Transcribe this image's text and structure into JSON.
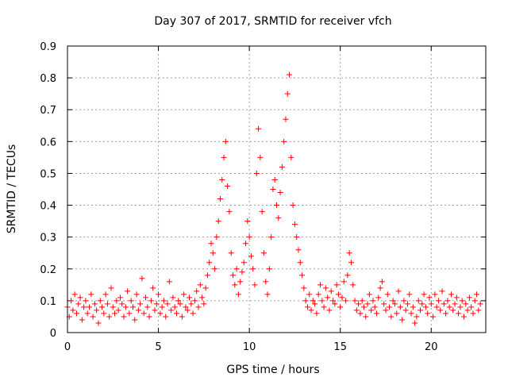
{
  "chart_data": {
    "type": "scatter",
    "title": "Day 307 of 2017, SRMTID for receiver vfch",
    "xlabel": "GPS time / hours",
    "ylabel": "SRMTID / TECUs",
    "xlim": [
      0,
      23
    ],
    "ylim": [
      0,
      0.9
    ],
    "xticks": [
      0,
      5,
      10,
      15,
      20
    ],
    "yticks": [
      0,
      0.1,
      0.2,
      0.3,
      0.4,
      0.5,
      0.6,
      0.7,
      0.8,
      0.9
    ],
    "x_tick_labels": [
      "0",
      "5",
      "10",
      "15",
      "20"
    ],
    "y_tick_labels": [
      "0",
      "0.1",
      "0.2",
      "0.3",
      "0.4",
      "0.5",
      "0.6",
      "0.7",
      "0.8",
      "0.9"
    ],
    "grid": true,
    "marker": "+",
    "color": "#ff0000",
    "series": [
      {
        "name": "SRMTID",
        "points": [
          [
            0.0,
            0.08
          ],
          [
            0.1,
            0.05
          ],
          [
            0.2,
            0.1
          ],
          [
            0.3,
            0.07
          ],
          [
            0.4,
            0.12
          ],
          [
            0.5,
            0.06
          ],
          [
            0.6,
            0.09
          ],
          [
            0.7,
            0.11
          ],
          [
            0.8,
            0.04
          ],
          [
            0.9,
            0.08
          ],
          [
            1.0,
            0.1
          ],
          [
            1.1,
            0.06
          ],
          [
            1.2,
            0.08
          ],
          [
            1.3,
            0.12
          ],
          [
            1.4,
            0.05
          ],
          [
            1.5,
            0.09
          ],
          [
            1.6,
            0.07
          ],
          [
            1.7,
            0.03
          ],
          [
            1.8,
            0.1
          ],
          [
            1.9,
            0.08
          ],
          [
            2.0,
            0.06
          ],
          [
            2.1,
            0.12
          ],
          [
            2.2,
            0.09
          ],
          [
            2.3,
            0.05
          ],
          [
            2.4,
            0.14
          ],
          [
            2.5,
            0.08
          ],
          [
            2.6,
            0.06
          ],
          [
            2.7,
            0.1
          ],
          [
            2.8,
            0.07
          ],
          [
            2.9,
            0.11
          ],
          [
            3.0,
            0.09
          ],
          [
            3.1,
            0.05
          ],
          [
            3.2,
            0.08
          ],
          [
            3.3,
            0.13
          ],
          [
            3.4,
            0.06
          ],
          [
            3.5,
            0.1
          ],
          [
            3.6,
            0.08
          ],
          [
            3.7,
            0.04
          ],
          [
            3.8,
            0.12
          ],
          [
            3.9,
            0.07
          ],
          [
            4.0,
            0.09
          ],
          [
            4.1,
            0.17
          ],
          [
            4.2,
            0.06
          ],
          [
            4.3,
            0.11
          ],
          [
            4.4,
            0.08
          ],
          [
            4.5,
            0.05
          ],
          [
            4.6,
            0.1
          ],
          [
            4.7,
            0.14
          ],
          [
            4.8,
            0.07
          ],
          [
            4.9,
            0.09
          ],
          [
            5.0,
            0.12
          ],
          [
            5.1,
            0.06
          ],
          [
            5.2,
            0.08
          ],
          [
            5.3,
            0.1
          ],
          [
            5.4,
            0.05
          ],
          [
            5.5,
            0.09
          ],
          [
            5.6,
            0.16
          ],
          [
            5.7,
            0.07
          ],
          [
            5.8,
            0.11
          ],
          [
            5.9,
            0.08
          ],
          [
            6.0,
            0.06
          ],
          [
            6.1,
            0.1
          ],
          [
            6.2,
            0.09
          ],
          [
            6.3,
            0.05
          ],
          [
            6.4,
            0.12
          ],
          [
            6.5,
            0.08
          ],
          [
            6.6,
            0.07
          ],
          [
            6.7,
            0.11
          ],
          [
            6.8,
            0.09
          ],
          [
            6.9,
            0.06
          ],
          [
            7.0,
            0.1
          ],
          [
            7.1,
            0.13
          ],
          [
            7.2,
            0.08
          ],
          [
            7.3,
            0.15
          ],
          [
            7.4,
            0.11
          ],
          [
            7.5,
            0.09
          ],
          [
            7.6,
            0.14
          ],
          [
            7.7,
            0.18
          ],
          [
            7.8,
            0.22
          ],
          [
            7.9,
            0.28
          ],
          [
            8.0,
            0.25
          ],
          [
            8.1,
            0.2
          ],
          [
            8.2,
            0.3
          ],
          [
            8.3,
            0.35
          ],
          [
            8.4,
            0.42
          ],
          [
            8.5,
            0.48
          ],
          [
            8.6,
            0.55
          ],
          [
            8.7,
            0.6
          ],
          [
            8.8,
            0.46
          ],
          [
            8.9,
            0.38
          ],
          [
            9.0,
            0.25
          ],
          [
            9.1,
            0.18
          ],
          [
            9.2,
            0.15
          ],
          [
            9.3,
            0.2
          ],
          [
            9.4,
            0.12
          ],
          [
            9.5,
            0.16
          ],
          [
            9.6,
            0.19
          ],
          [
            9.7,
            0.22
          ],
          [
            9.8,
            0.28
          ],
          [
            9.9,
            0.35
          ],
          [
            10.0,
            0.3
          ],
          [
            10.1,
            0.24
          ],
          [
            10.2,
            0.2
          ],
          [
            10.3,
            0.15
          ],
          [
            10.4,
            0.5
          ],
          [
            10.5,
            0.64
          ],
          [
            10.6,
            0.55
          ],
          [
            10.7,
            0.38
          ],
          [
            10.8,
            0.25
          ],
          [
            10.9,
            0.16
          ],
          [
            11.0,
            0.12
          ],
          [
            11.1,
            0.2
          ],
          [
            11.2,
            0.3
          ],
          [
            11.3,
            0.45
          ],
          [
            11.4,
            0.48
          ],
          [
            11.5,
            0.4
          ],
          [
            11.6,
            0.36
          ],
          [
            11.7,
            0.44
          ],
          [
            11.8,
            0.52
          ],
          [
            11.9,
            0.6
          ],
          [
            12.0,
            0.67
          ],
          [
            12.1,
            0.75
          ],
          [
            12.2,
            0.81
          ],
          [
            12.3,
            0.55
          ],
          [
            12.4,
            0.4
          ],
          [
            12.5,
            0.34
          ],
          [
            12.6,
            0.3
          ],
          [
            12.7,
            0.26
          ],
          [
            12.8,
            0.22
          ],
          [
            12.9,
            0.18
          ],
          [
            13.0,
            0.14
          ],
          [
            13.1,
            0.1
          ],
          [
            13.2,
            0.08
          ],
          [
            13.3,
            0.12
          ],
          [
            13.4,
            0.07
          ],
          [
            13.5,
            0.1
          ],
          [
            13.6,
            0.09
          ],
          [
            13.7,
            0.06
          ],
          [
            13.8,
            0.12
          ],
          [
            13.9,
            0.15
          ],
          [
            14.0,
            0.1
          ],
          [
            14.1,
            0.08
          ],
          [
            14.2,
            0.14
          ],
          [
            14.3,
            0.11
          ],
          [
            14.4,
            0.07
          ],
          [
            14.5,
            0.13
          ],
          [
            14.6,
            0.1
          ],
          [
            14.7,
            0.09
          ],
          [
            14.8,
            0.15
          ],
          [
            14.9,
            0.12
          ],
          [
            15.0,
            0.08
          ],
          [
            15.1,
            0.11
          ],
          [
            15.2,
            0.16
          ],
          [
            15.3,
            0.1
          ],
          [
            15.4,
            0.18
          ],
          [
            15.5,
            0.25
          ],
          [
            15.6,
            0.22
          ],
          [
            15.7,
            0.15
          ],
          [
            15.8,
            0.1
          ],
          [
            15.9,
            0.07
          ],
          [
            16.0,
            0.09
          ],
          [
            16.1,
            0.06
          ],
          [
            16.2,
            0.1
          ],
          [
            16.3,
            0.08
          ],
          [
            16.4,
            0.05
          ],
          [
            16.5,
            0.09
          ],
          [
            16.6,
            0.12
          ],
          [
            16.7,
            0.07
          ],
          [
            16.8,
            0.1
          ],
          [
            16.9,
            0.08
          ],
          [
            17.0,
            0.06
          ],
          [
            17.1,
            0.11
          ],
          [
            17.2,
            0.14
          ],
          [
            17.3,
            0.16
          ],
          [
            17.4,
            0.09
          ],
          [
            17.5,
            0.07
          ],
          [
            17.6,
            0.12
          ],
          [
            17.7,
            0.08
          ],
          [
            17.8,
            0.05
          ],
          [
            17.9,
            0.1
          ],
          [
            18.0,
            0.09
          ],
          [
            18.1,
            0.06
          ],
          [
            18.2,
            0.13
          ],
          [
            18.3,
            0.08
          ],
          [
            18.4,
            0.04
          ],
          [
            18.5,
            0.1
          ],
          [
            18.6,
            0.07
          ],
          [
            18.7,
            0.09
          ],
          [
            18.8,
            0.12
          ],
          [
            18.9,
            0.06
          ],
          [
            19.0,
            0.08
          ],
          [
            19.1,
            0.03
          ],
          [
            19.2,
            0.05
          ],
          [
            19.3,
            0.1
          ],
          [
            19.4,
            0.07
          ],
          [
            19.5,
            0.09
          ],
          [
            19.6,
            0.12
          ],
          [
            19.7,
            0.08
          ],
          [
            19.8,
            0.06
          ],
          [
            19.9,
            0.11
          ],
          [
            20.0,
            0.09
          ],
          [
            20.1,
            0.05
          ],
          [
            20.2,
            0.12
          ],
          [
            20.3,
            0.08
          ],
          [
            20.4,
            0.1
          ],
          [
            20.5,
            0.07
          ],
          [
            20.6,
            0.13
          ],
          [
            20.7,
            0.09
          ],
          [
            20.8,
            0.06
          ],
          [
            20.9,
            0.1
          ],
          [
            21.0,
            0.08
          ],
          [
            21.1,
            0.12
          ],
          [
            21.2,
            0.07
          ],
          [
            21.3,
            0.09
          ],
          [
            21.4,
            0.11
          ],
          [
            21.5,
            0.06
          ],
          [
            21.6,
            0.08
          ],
          [
            21.7,
            0.1
          ],
          [
            21.8,
            0.05
          ],
          [
            21.9,
            0.09
          ],
          [
            22.0,
            0.07
          ],
          [
            22.1,
            0.11
          ],
          [
            22.2,
            0.08
          ],
          [
            22.3,
            0.06
          ],
          [
            22.4,
            0.1
          ],
          [
            22.5,
            0.12
          ],
          [
            22.6,
            0.07
          ],
          [
            22.7,
            0.09
          ]
        ]
      }
    ]
  }
}
